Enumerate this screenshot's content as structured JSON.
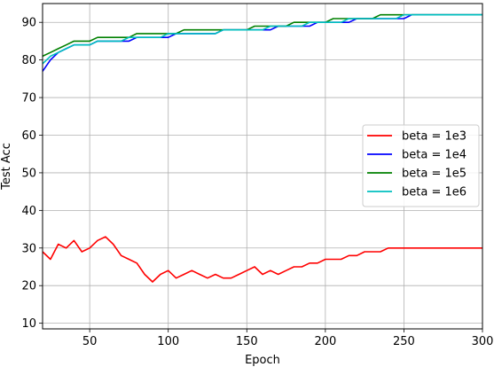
{
  "chart_data": {
    "type": "line",
    "xlabel": "Epoch",
    "ylabel": "Test Acc",
    "xlim": [
      20,
      300
    ],
    "ylim": [
      8.5,
      95
    ],
    "xticks": [
      50,
      100,
      150,
      200,
      250,
      300
    ],
    "yticks": [
      10,
      20,
      30,
      40,
      50,
      60,
      70,
      80,
      90
    ],
    "grid": true,
    "legend_position": "center-right",
    "series": [
      {
        "name": "beta = 1e3",
        "color": "#ff0000",
        "x": [
          20,
          25,
          30,
          35,
          40,
          45,
          50,
          55,
          60,
          65,
          70,
          75,
          80,
          85,
          90,
          95,
          100,
          105,
          110,
          115,
          120,
          125,
          130,
          135,
          140,
          145,
          150,
          155,
          160,
          165,
          170,
          175,
          180,
          185,
          190,
          195,
          200,
          205,
          210,
          215,
          220,
          225,
          230,
          235,
          240,
          245,
          250,
          255,
          260,
          265,
          270,
          275,
          280,
          285,
          290,
          295,
          300
        ],
        "y": [
          29,
          27,
          31,
          30,
          32,
          29,
          30,
          32,
          33,
          31,
          28,
          27,
          26,
          23,
          21,
          23,
          24,
          22,
          23,
          24,
          23,
          22,
          23,
          22,
          22,
          23,
          24,
          25,
          23,
          24,
          23,
          24,
          25,
          25,
          26,
          26,
          27,
          27,
          27,
          28,
          28,
          29,
          29,
          29,
          30,
          30,
          30,
          30,
          30,
          30,
          30,
          30,
          30,
          30,
          30,
          30,
          30
        ]
      },
      {
        "name": "beta = 1e4",
        "color": "#0000ff",
        "x": [
          20,
          25,
          30,
          35,
          40,
          45,
          50,
          55,
          60,
          65,
          70,
          75,
          80,
          85,
          90,
          95,
          100,
          105,
          110,
          115,
          120,
          125,
          130,
          135,
          140,
          145,
          150,
          155,
          160,
          165,
          170,
          175,
          180,
          185,
          190,
          195,
          200,
          205,
          210,
          215,
          220,
          225,
          230,
          235,
          240,
          245,
          250,
          255,
          260,
          265,
          270,
          275,
          280,
          285,
          290,
          295,
          300
        ],
        "y": [
          77,
          80,
          82,
          83,
          84,
          84,
          84,
          85,
          85,
          85,
          85,
          85,
          86,
          86,
          86,
          86,
          86,
          87,
          87,
          87,
          87,
          87,
          87,
          88,
          88,
          88,
          88,
          88,
          88,
          88,
          89,
          89,
          89,
          89,
          89,
          90,
          90,
          90,
          90,
          90,
          91,
          91,
          91,
          91,
          91,
          91,
          91,
          92,
          92,
          92,
          92,
          92,
          92,
          92,
          92,
          92,
          92
        ]
      },
      {
        "name": "beta = 1e5",
        "color": "#008000",
        "x": [
          20,
          25,
          30,
          35,
          40,
          45,
          50,
          55,
          60,
          65,
          70,
          75,
          80,
          85,
          90,
          95,
          100,
          105,
          110,
          115,
          120,
          125,
          130,
          135,
          140,
          145,
          150,
          155,
          160,
          165,
          170,
          175,
          180,
          185,
          190,
          195,
          200,
          205,
          210,
          215,
          220,
          225,
          230,
          235,
          240,
          245,
          250,
          255,
          260,
          265,
          270,
          275,
          280,
          285,
          290,
          295,
          300
        ],
        "y": [
          81,
          82,
          83,
          84,
          85,
          85,
          85,
          86,
          86,
          86,
          86,
          86,
          87,
          87,
          87,
          87,
          87,
          87,
          88,
          88,
          88,
          88,
          88,
          88,
          88,
          88,
          88,
          89,
          89,
          89,
          89,
          89,
          90,
          90,
          90,
          90,
          90,
          91,
          91,
          91,
          91,
          91,
          91,
          92,
          92,
          92,
          92,
          92,
          92,
          92,
          92,
          92,
          92,
          92,
          92,
          92,
          92
        ]
      },
      {
        "name": "beta = 1e6",
        "color": "#00bfbf",
        "x": [
          20,
          25,
          30,
          35,
          40,
          45,
          50,
          55,
          60,
          65,
          70,
          75,
          80,
          85,
          90,
          95,
          100,
          105,
          110,
          115,
          120,
          125,
          130,
          135,
          140,
          145,
          150,
          155,
          160,
          165,
          170,
          175,
          180,
          185,
          190,
          195,
          200,
          205,
          210,
          215,
          220,
          225,
          230,
          235,
          240,
          245,
          250,
          255,
          260,
          265,
          270,
          275,
          280,
          285,
          290,
          295,
          300
        ],
        "y": [
          79,
          81,
          82,
          83,
          84,
          84,
          84,
          85,
          85,
          85,
          85,
          86,
          86,
          86,
          86,
          86,
          87,
          87,
          87,
          87,
          87,
          87,
          87,
          88,
          88,
          88,
          88,
          88,
          88,
          89,
          89,
          89,
          89,
          89,
          90,
          90,
          90,
          90,
          90,
          91,
          91,
          91,
          91,
          91,
          91,
          91,
          92,
          92,
          92,
          92,
          92,
          92,
          92,
          92,
          92,
          92,
          92
        ]
      }
    ]
  }
}
